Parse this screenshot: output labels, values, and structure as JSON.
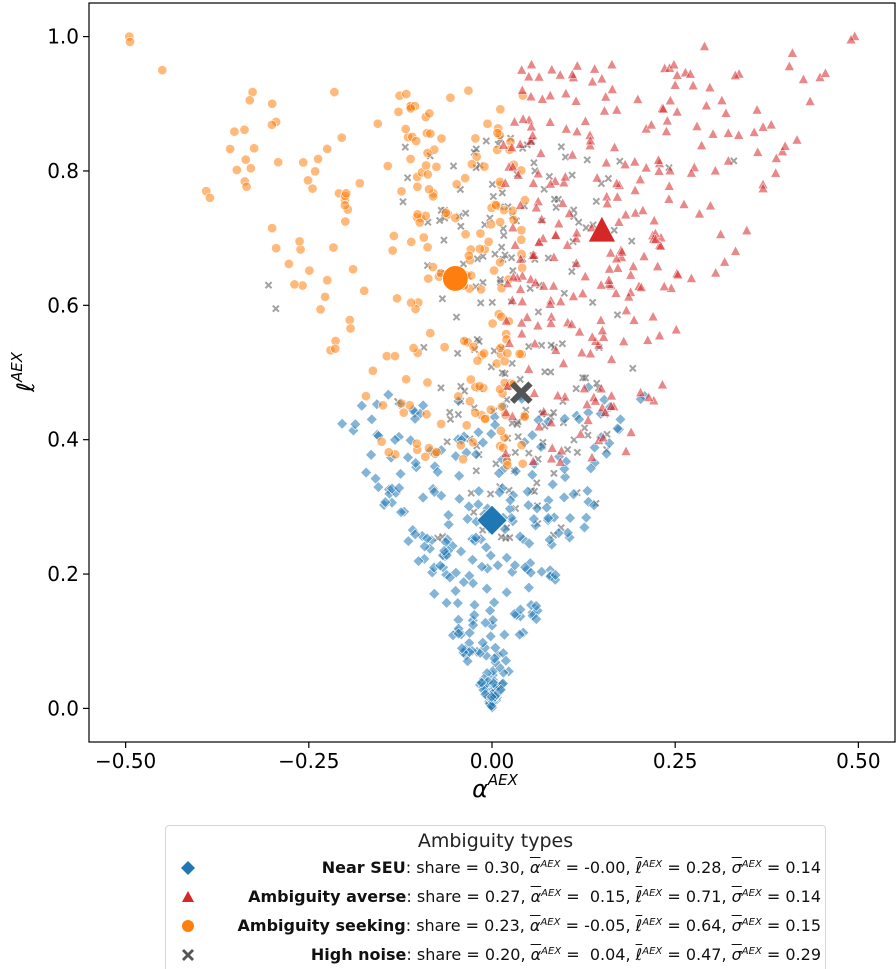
{
  "chart_data": {
    "type": "scatter",
    "xlabel": "α",
    "xlabel_sup": "AEX",
    "ylabel": "ℓ",
    "ylabel_sup": "AEX",
    "xlim": [
      -0.55,
      0.55
    ],
    "ylim": [
      -0.05,
      1.05
    ],
    "xticks": [
      -0.5,
      -0.25,
      0.0,
      0.25,
      0.5
    ],
    "xtick_labels": [
      "−0.50",
      "−0.25",
      "0.00",
      "0.25",
      "0.50"
    ],
    "yticks": [
      0.0,
      0.2,
      0.4,
      0.6,
      0.8,
      1.0
    ],
    "ytick_labels": [
      "0.0",
      "0.2",
      "0.4",
      "0.6",
      "0.8",
      "1.0"
    ],
    "grid": false,
    "legend_placement": "bottom-center-outside",
    "series": [
      {
        "name": "Near SEU",
        "marker": "diamond",
        "color": "#1f77b4",
        "count": 300,
        "centroid": {
          "x": 0.0,
          "y": 0.28
        }
      },
      {
        "name": "Ambiguity averse",
        "marker": "triangle",
        "color": "#d62728",
        "count": 270,
        "centroid": {
          "x": 0.15,
          "y": 0.71
        }
      },
      {
        "name": "Ambiguity seeking",
        "marker": "circle",
        "color": "#ff7f0e",
        "count": 230,
        "centroid": {
          "x": -0.05,
          "y": 0.64
        }
      },
      {
        "name": "High noise",
        "marker": "cross",
        "color": "#555555",
        "count": 200,
        "centroid": {
          "x": 0.04,
          "y": 0.47
        }
      }
    ],
    "outlier_points": {
      "Ambiguity seeking": [
        [
          -0.495,
          1.0
        ],
        [
          -0.494,
          0.992
        ],
        [
          -0.45,
          0.95
        ],
        [
          -0.3,
          0.9
        ],
        [
          -0.39,
          0.77
        ],
        [
          -0.385,
          0.76
        ]
      ],
      "Ambiguity averse": [
        [
          0.495,
          1.0
        ],
        [
          0.49,
          0.995
        ],
        [
          0.41,
          0.975
        ],
        [
          0.29,
          0.985
        ],
        [
          0.455,
          0.945
        ]
      ],
      "High noise": [
        [
          -0.305,
          0.63
        ],
        [
          -0.295,
          0.595
        ],
        [
          0.33,
          0.815
        ]
      ]
    }
  },
  "legend": {
    "title": "Ambiguity types",
    "rows": [
      {
        "name": "Near SEU",
        "share": "0.30",
        "alpha": "-0.00",
        "ell": "0.28",
        "sigma": "0.14",
        "color": "#1f77b4",
        "marker": "diamond"
      },
      {
        "name": "Ambiguity averse",
        "share": "0.27",
        "alpha": " 0.15",
        "ell": "0.71",
        "sigma": "0.14",
        "color": "#d62728",
        "marker": "triangle"
      },
      {
        "name": "Ambiguity seeking",
        "share": "0.23",
        "alpha": "-0.05",
        "ell": "0.64",
        "sigma": "0.15",
        "color": "#ff7f0e",
        "marker": "circle"
      },
      {
        "name": "High noise",
        "share": "0.20",
        "alpha": " 0.04",
        "ell": "0.47",
        "sigma": "0.29",
        "color": "#555555",
        "marker": "cross"
      }
    ]
  }
}
